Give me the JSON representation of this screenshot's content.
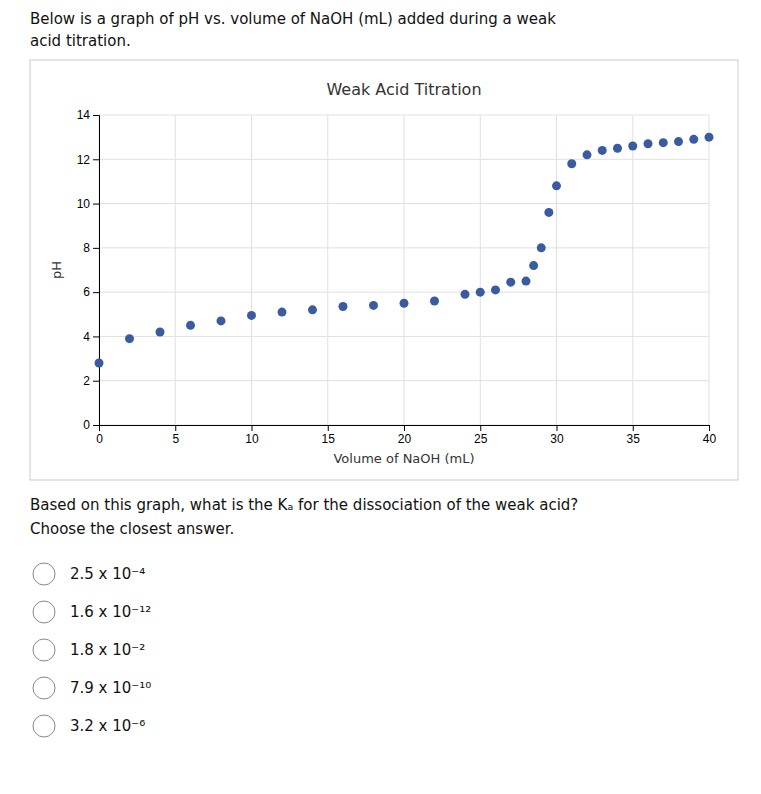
{
  "chart_data": {
    "type": "scatter",
    "title": "Weak Acid Titration",
    "xlabel": "Volume of NaOH (mL)",
    "ylabel": "pH",
    "color": "#3A5BA0",
    "x": [
      0,
      2,
      4,
      6,
      8,
      10,
      12,
      14,
      16,
      18,
      20,
      22,
      24,
      25,
      26,
      27,
      28,
      28.5,
      29,
      29.5,
      30,
      31,
      32,
      33,
      34,
      35,
      36,
      37,
      38,
      39,
      40
    ],
    "values": [
      2.8,
      3.9,
      4.2,
      4.5,
      4.7,
      4.95,
      5.1,
      5.2,
      5.35,
      5.4,
      5.5,
      5.6,
      5.9,
      6.0,
      6.1,
      6.45,
      6.5,
      7.2,
      8.0,
      9.6,
      10.8,
      11.8,
      12.2,
      12.4,
      12.5,
      12.6,
      12.7,
      12.75,
      12.8,
      12.9,
      13.0
    ],
    "xlim": [
      0,
      40
    ],
    "ylim": [
      0,
      14
    ],
    "xticks": [
      0,
      5,
      10,
      15,
      20,
      25,
      30,
      35,
      40
    ],
    "yticks": [
      0,
      2,
      4,
      6,
      8,
      10,
      12,
      14
    ],
    "grid": true,
    "annotations": [
      "Below is a graph of pH vs. volume of NaOH (mL) added during a weak",
      "acid titration.",
      "Based on this graph, what is the Kₐ for the dissociation of the weak acid?",
      "Choose the closest answer."
    ],
    "choices": [
      "2.5 x 10⁻⁴",
      "1.6 x 10⁻¹²",
      "1.8 x 10⁻²",
      "7.9 x 10⁻¹⁰",
      "3.2 x 10⁻⁶"
    ]
  }
}
